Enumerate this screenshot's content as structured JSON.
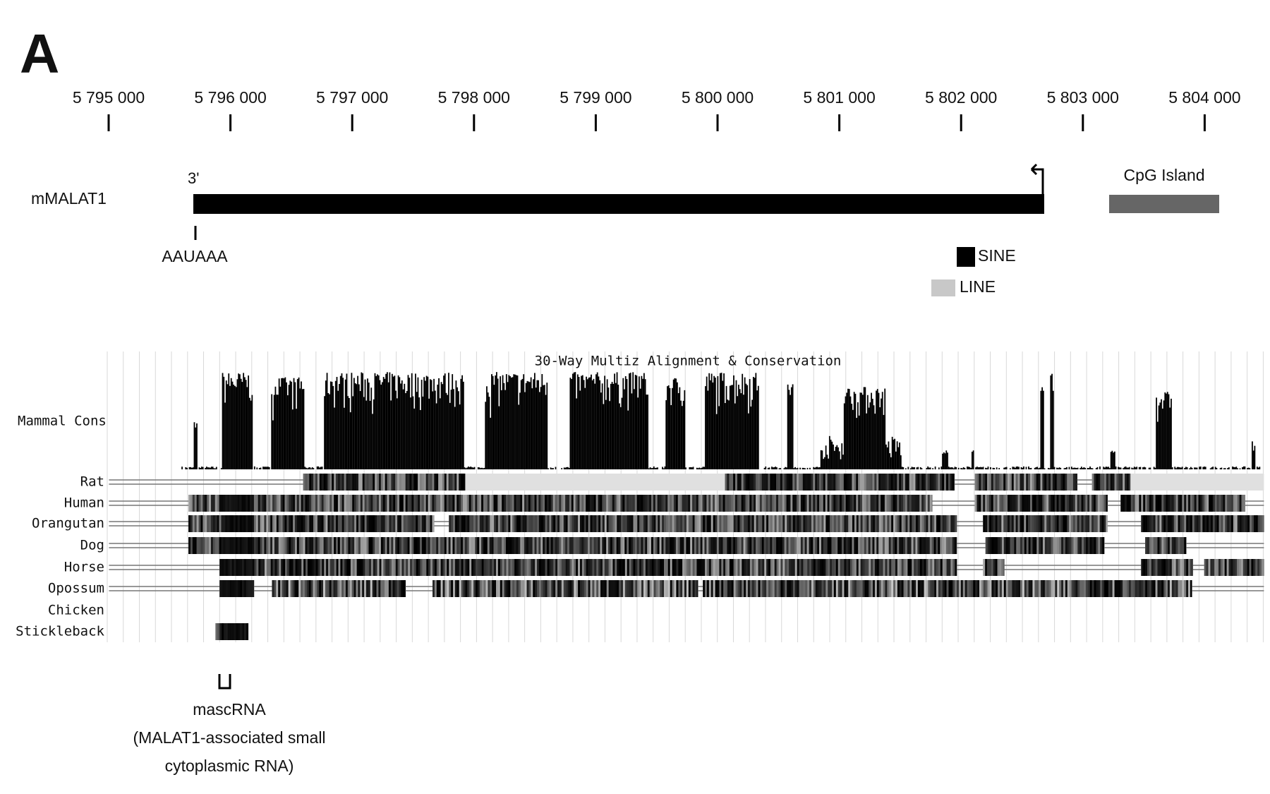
{
  "panel": {
    "label": "A"
  },
  "ruler": {
    "ticks": [
      "5 795 000",
      "5 796 000",
      "5 797 000",
      "5 798 000",
      "5 799 000",
      "5 800 000",
      "5 801 000",
      "5 802 000",
      "5 803 000",
      "5 804 000"
    ]
  },
  "gene": {
    "name": "mMALAT1",
    "end_label": "3'",
    "signal": "AAUAAA",
    "cpg": "CpG Island"
  },
  "legend": {
    "sine": "SINE",
    "line": "LINE"
  },
  "track": {
    "title": "30-Way Multiz Alignment & Conservation",
    "cons_label": "Mammal Cons",
    "species": [
      "Rat",
      "Human",
      "Orangutan",
      "Dog",
      "Horse",
      "Opossum",
      "Chicken",
      "Stickleback"
    ]
  },
  "annotation": {
    "lines": [
      "mascRNA",
      "(MALAT1-associated small",
      "cytoplasmic RNA)"
    ]
  }
}
